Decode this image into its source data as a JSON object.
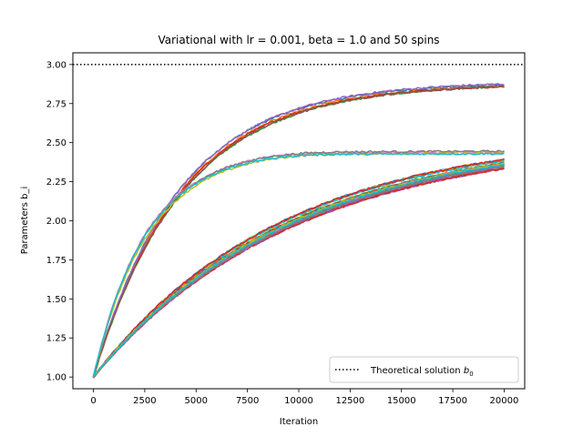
{
  "chart_data": {
    "type": "line",
    "title": "Variational with lr = 0.001, beta = 1.0 and 50 spins",
    "xlabel": "Iteration",
    "ylabel": "Parameters b_i",
    "xlim": [
      -1000,
      21000
    ],
    "ylim": [
      0.925,
      3.075
    ],
    "xticks": [
      0,
      2500,
      5000,
      7500,
      10000,
      12500,
      15000,
      17500,
      20000
    ],
    "xtick_labels": [
      "0",
      "2500",
      "5000",
      "7500",
      "10000",
      "12500",
      "15000",
      "17500",
      "20000"
    ],
    "yticks": [
      1.0,
      1.25,
      1.5,
      1.75,
      2.0,
      2.25,
      2.5,
      2.75,
      3.0
    ],
    "ytick_labels": [
      "1.00",
      "1.25",
      "1.50",
      "1.75",
      "2.00",
      "2.25",
      "2.50",
      "2.75",
      "3.00"
    ],
    "grid": false,
    "legend": {
      "position": "lower-right",
      "entries": [
        {
          "label": "Theoretical solution",
          "math": "b",
          "math_sub": "0",
          "style": "dotted",
          "color": "#000000"
        }
      ]
    },
    "reference_line": {
      "y": 3.0,
      "style": "dotted",
      "color": "#000000"
    },
    "groups": [
      {
        "final": 2.88,
        "tau": 4200,
        "count": 6,
        "spread": 0.012
      },
      {
        "final": 2.44,
        "tau": 2600,
        "count": 4,
        "spread": 0.012,
        "overshoot": 0.015
      },
      {
        "final": 2.55,
        "tau": 9500,
        "count": 40,
        "spread": 0.02
      }
    ],
    "x_end": 20000,
    "colors": [
      "#1f77b4",
      "#ff7f0e",
      "#2ca02c",
      "#d62728",
      "#9467bd",
      "#8c564b",
      "#e377c2",
      "#7f7f7f",
      "#bcbd22",
      "#17becf"
    ]
  }
}
